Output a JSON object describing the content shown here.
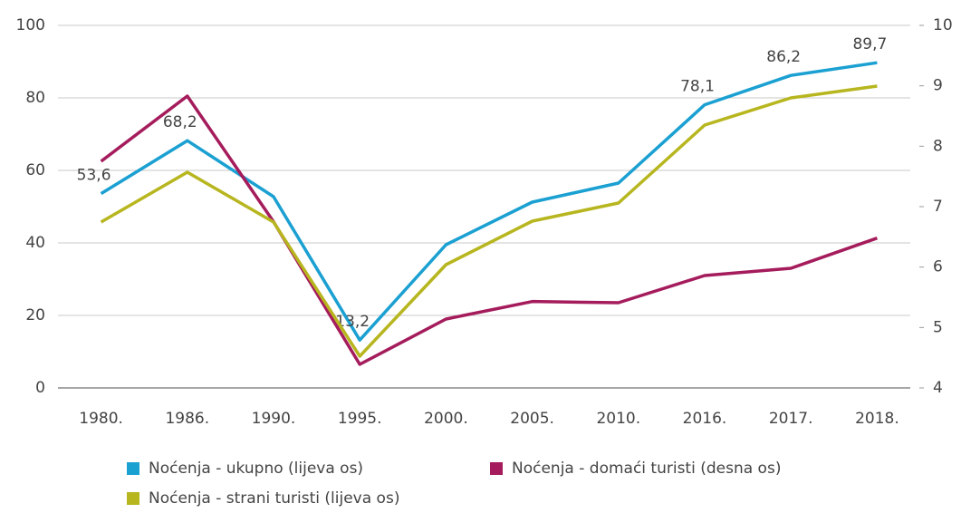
{
  "chart_data": {
    "type": "line",
    "categories": [
      "1980.",
      "1986.",
      "1990.",
      "1995.",
      "2000.",
      "2005.",
      "2010.",
      "2016.",
      "2017.",
      "2018."
    ],
    "series": [
      {
        "name": "Noćenja - ukupno (lijeva os)",
        "color": "#1ba0d2",
        "values": [
          53.6,
          68.2,
          52.75,
          13.2,
          39.5,
          51.25,
          56.5,
          78.1,
          86.2,
          89.7
        ],
        "value_labels": [
          "53,6",
          "68,2",
          null,
          "13,2",
          null,
          null,
          null,
          "78,1",
          "86,2",
          "89,7"
        ]
      },
      {
        "name": "Noćenja - domaći turisti (desna os)",
        "color": "#a51c5c",
        "axis": "y2",
        "values": [
          7.75,
          8.83,
          6.75,
          4.39,
          5.14,
          5.43,
          5.41,
          5.86,
          5.98,
          6.48
        ]
      },
      {
        "name": "Noćenja - strani turisti (lijeva os)",
        "color": "#b7b61f",
        "values": [
          45.75,
          59.5,
          45.75,
          8.75,
          34,
          46,
          51,
          72.5,
          80,
          83.25
        ]
      }
    ],
    "ylim": [
      0,
      100
    ],
    "yticks": [
      0,
      20,
      40,
      60,
      80,
      100
    ],
    "y2lim": [
      4,
      10
    ],
    "y2ticks": [
      4,
      5,
      6,
      7,
      8,
      9,
      10
    ],
    "grid": true
  }
}
